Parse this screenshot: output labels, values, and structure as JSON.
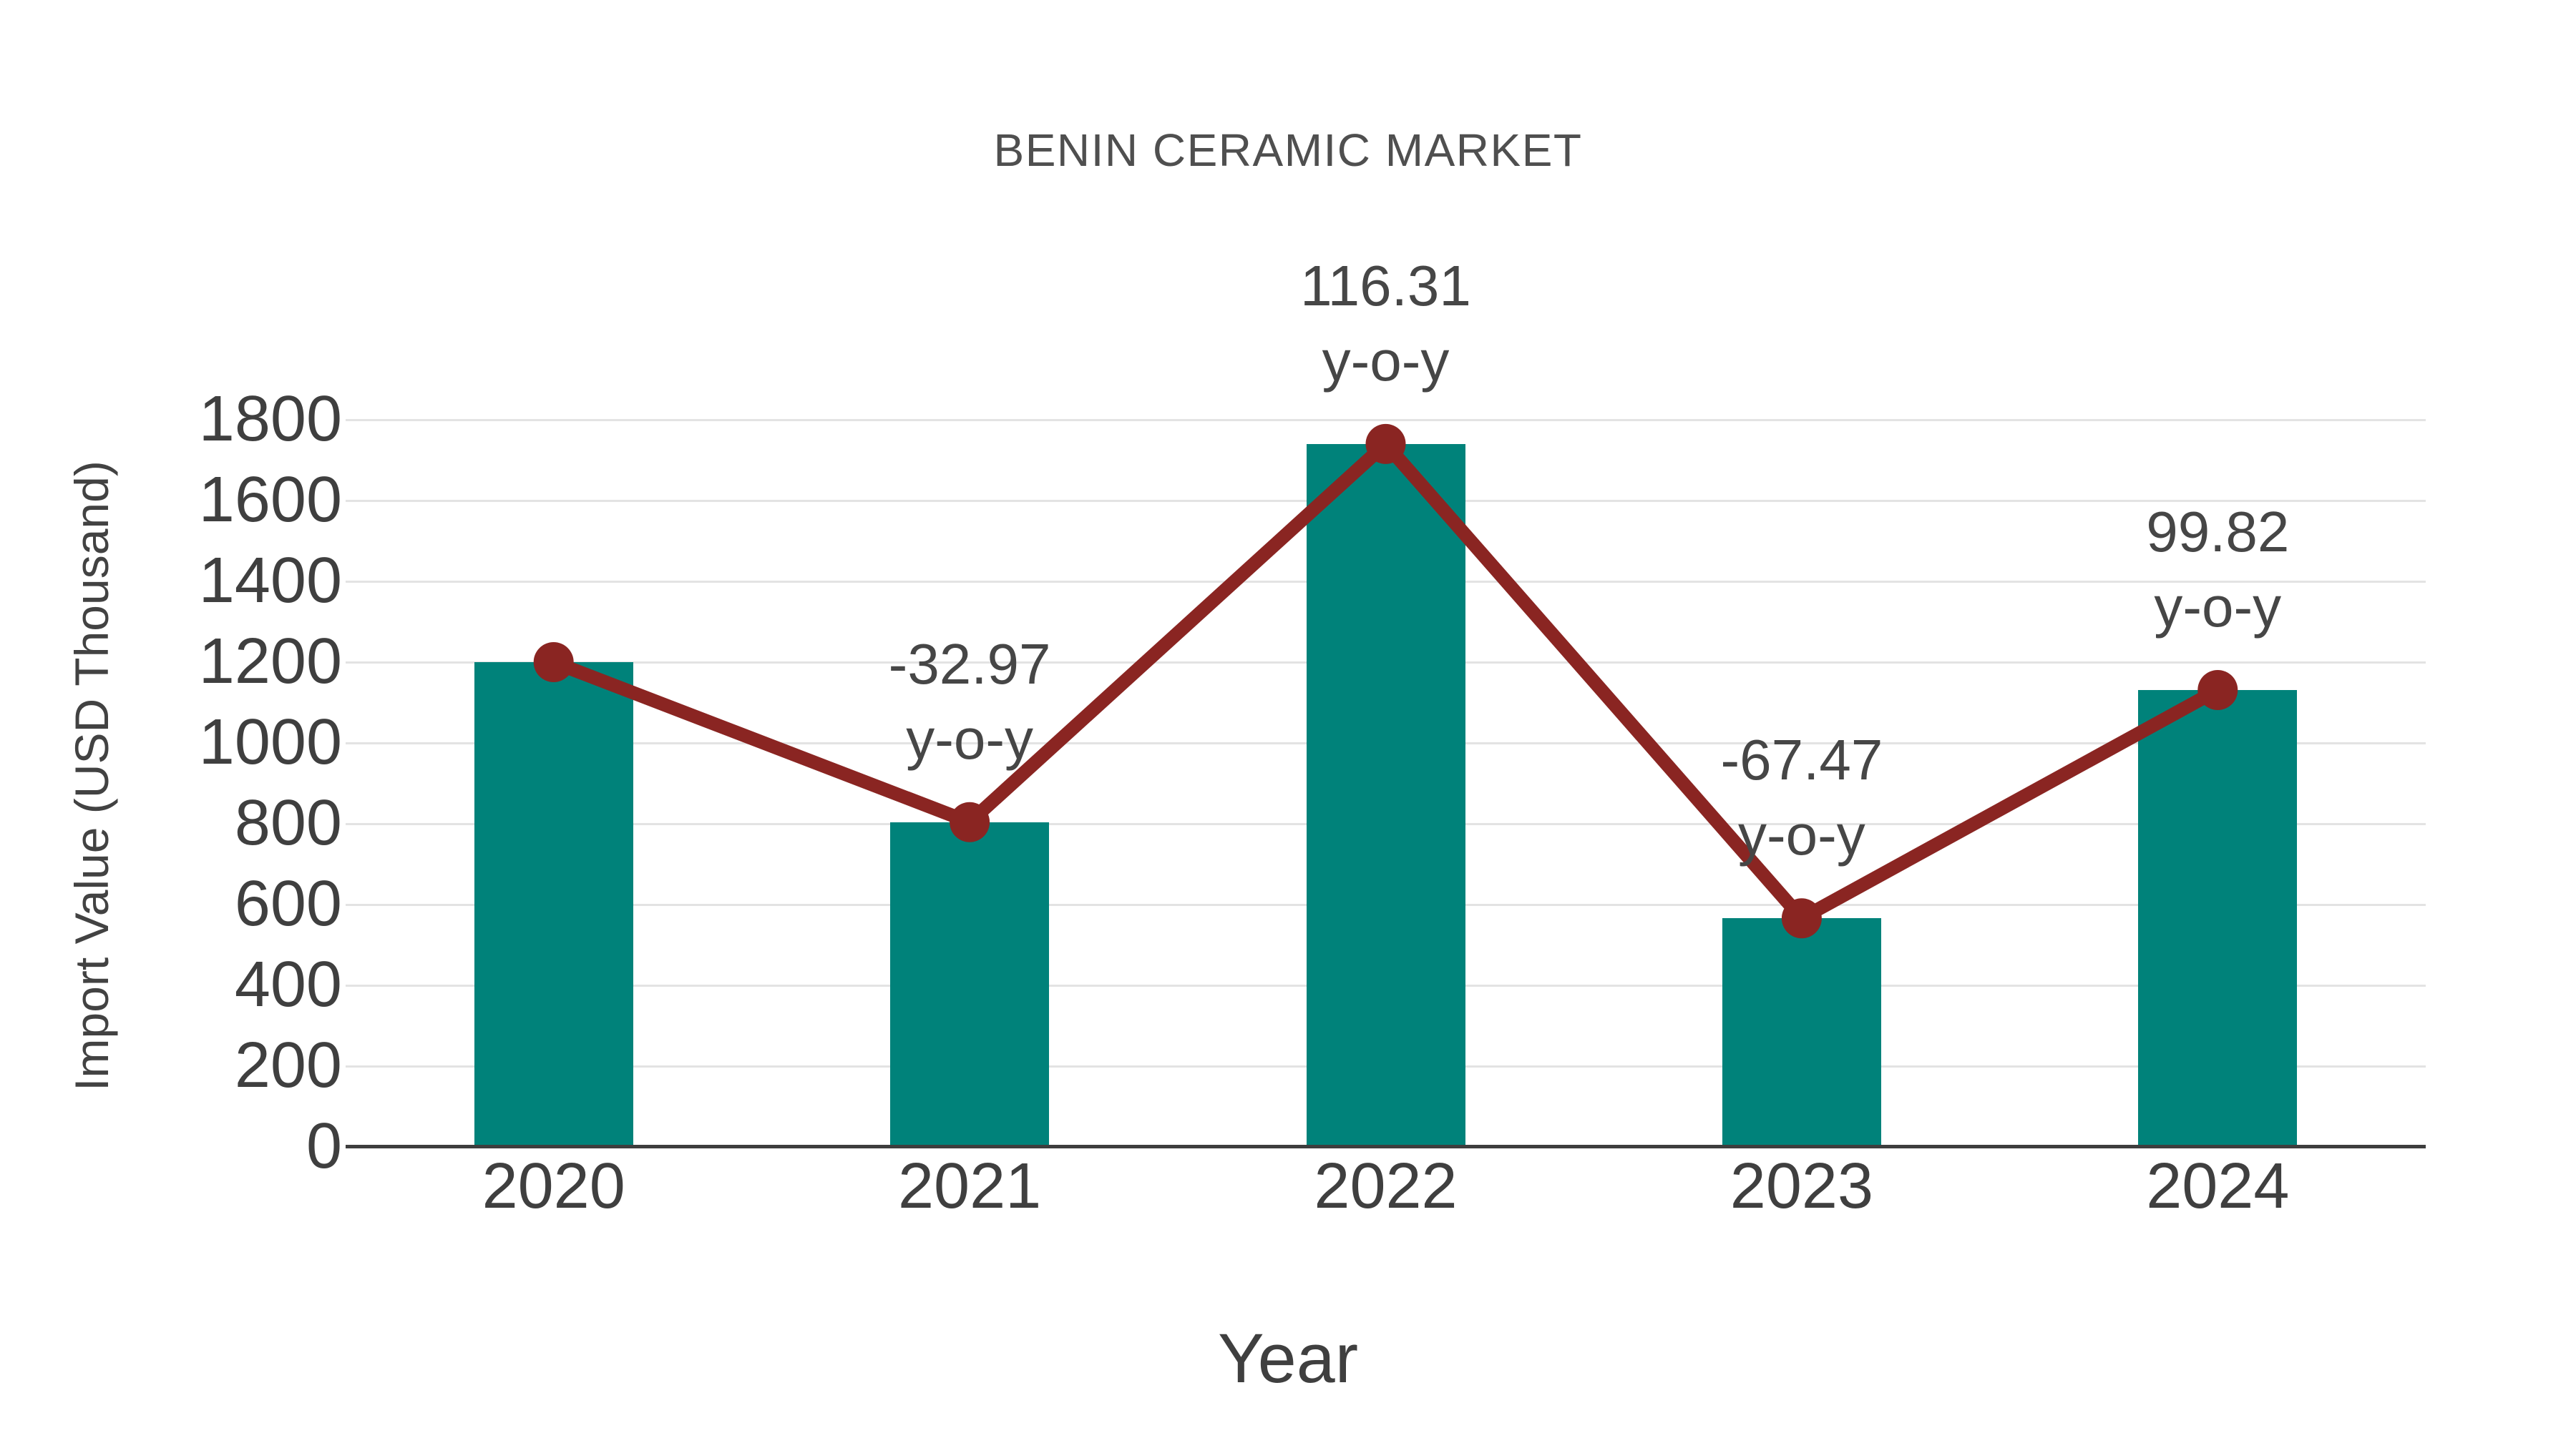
{
  "title": "BENIN CERAMIC MARKET",
  "chart_data": {
    "type": "bar",
    "title": "BENIN CERAMIC MARKET",
    "xlabel": "Year",
    "ylabel": "Import Value (USD Thousand)",
    "categories": [
      "2020",
      "2021",
      "2022",
      "2023",
      "2024"
    ],
    "series": [
      {
        "name": "Import Value (bars)",
        "type": "bar",
        "color": "#00827A",
        "values": [
          1200,
          804,
          1740,
          566,
          1131
        ]
      },
      {
        "name": "Import Value (trend line with markers)",
        "type": "line",
        "color": "#8A2522",
        "values": [
          1200,
          804,
          1740,
          566,
          1131
        ]
      }
    ],
    "annotations": [
      {
        "category": "2021",
        "lines": [
          "-32.97",
          "y-o-y"
        ]
      },
      {
        "category": "2022",
        "lines": [
          "116.31",
          "y-o-y"
        ]
      },
      {
        "category": "2023",
        "lines": [
          "-67.47",
          "y-o-y"
        ]
      },
      {
        "category": "2024",
        "lines": [
          "99.82",
          "y-o-y"
        ]
      }
    ],
    "ylim": [
      0,
      1800
    ],
    "ytick_step": 200,
    "yticks": [
      "0",
      "200",
      "400",
      "600",
      "800",
      "1000",
      "1200",
      "1400",
      "1600",
      "1800"
    ],
    "grid": true,
    "legend": "none"
  },
  "colors": {
    "bar": "#00827A",
    "line": "#8A2522",
    "marker": "#8A2522",
    "grid": "#E3E3E3",
    "axis": "#3E3E3E",
    "tick_text": "#3F3F3F",
    "title_text": "#4F4F4F",
    "annotation_text": "#464646",
    "background": "#FFFFFF"
  }
}
